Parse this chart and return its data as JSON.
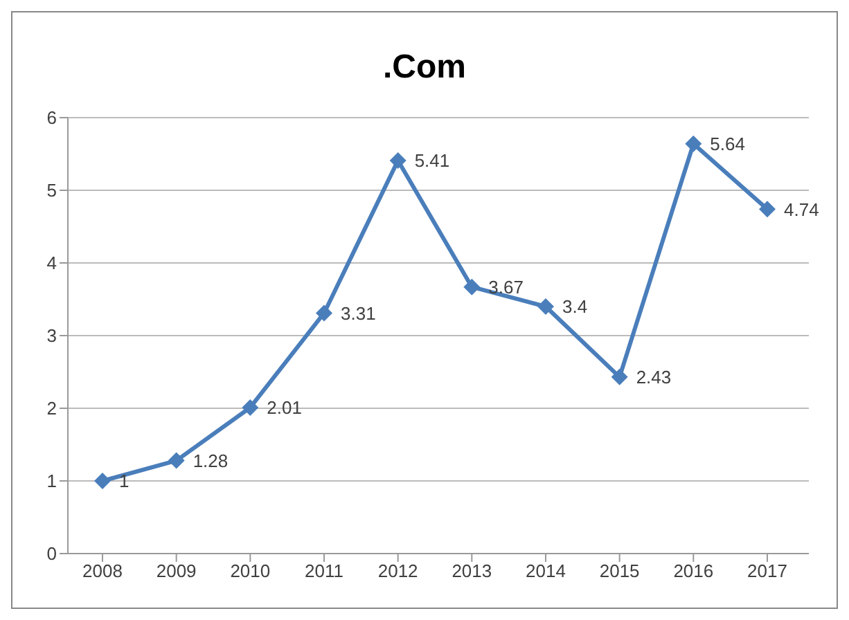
{
  "chart_data": {
    "type": "line",
    "title": ".Com",
    "categories": [
      "2008",
      "2009",
      "2010",
      "2011",
      "2012",
      "2013",
      "2014",
      "2015",
      "2016",
      "2017"
    ],
    "series": [
      {
        "color": "#4a7ebb",
        "values": [
          1,
          1.28,
          2.01,
          3.31,
          5.41,
          3.67,
          3.4,
          2.43,
          5.64,
          4.74
        ]
      }
    ],
    "ylim": [
      0,
      6
    ],
    "yticks": [
      0,
      1,
      2,
      3,
      4,
      5,
      6
    ],
    "grid": "y",
    "legend": false,
    "marker": "diamond",
    "line_style": "solid",
    "data_labels": true
  }
}
